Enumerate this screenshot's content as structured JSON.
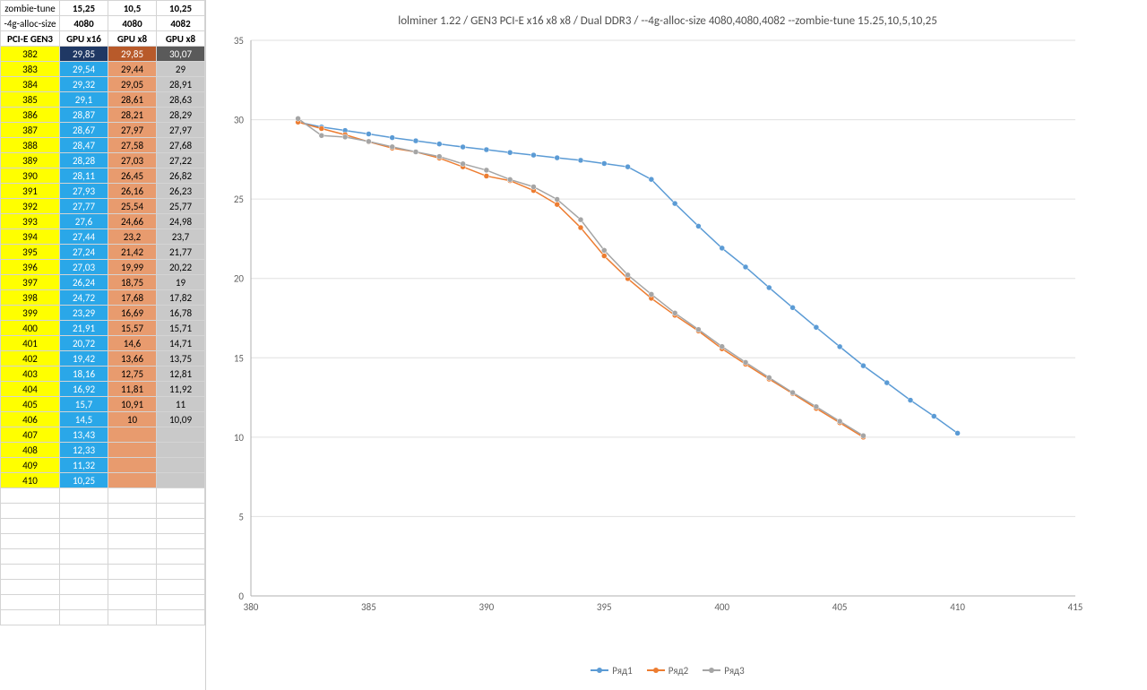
{
  "headers": {
    "row1_label": "zombie-tune",
    "row1_vals": [
      "15,25",
      "10,5",
      "10,25"
    ],
    "row2_label": "-4g-alloc-size",
    "row2_vals": [
      "4080",
      "4080",
      "4082"
    ],
    "row3_label": "PCI-E GEN3",
    "row3_vals": [
      "GPU x16",
      "GPU x8",
      "GPU x8"
    ]
  },
  "epoch_col_color": "#ffff00",
  "series_colors": {
    "s1": "#2aa7e8",
    "s2": "#e89b6e",
    "s3": "#c9c9c9",
    "s1_sel": "#1f3864",
    "s2_sel": "#b85a2a",
    "s3_sel": "#5a5a5a"
  },
  "rows": [
    {
      "e": 382,
      "s1": "29,85",
      "s2": "29,85",
      "s3": "30,07",
      "sel": true
    },
    {
      "e": 383,
      "s1": "29,54",
      "s2": "29,44",
      "s3": "29"
    },
    {
      "e": 384,
      "s1": "29,32",
      "s2": "29,05",
      "s3": "28,91"
    },
    {
      "e": 385,
      "s1": "29,1",
      "s2": "28,61",
      "s3": "28,63"
    },
    {
      "e": 386,
      "s1": "28,87",
      "s2": "28,21",
      "s3": "28,29"
    },
    {
      "e": 387,
      "s1": "28,67",
      "s2": "27,97",
      "s3": "27,97"
    },
    {
      "e": 388,
      "s1": "28,47",
      "s2": "27,58",
      "s3": "27,68"
    },
    {
      "e": 389,
      "s1": "28,28",
      "s2": "27,03",
      "s3": "27,22"
    },
    {
      "e": 390,
      "s1": "28,11",
      "s2": "26,45",
      "s3": "26,82"
    },
    {
      "e": 391,
      "s1": "27,93",
      "s2": "26,16",
      "s3": "26,23"
    },
    {
      "e": 392,
      "s1": "27,77",
      "s2": "25,54",
      "s3": "25,77"
    },
    {
      "e": 393,
      "s1": "27,6",
      "s2": "24,66",
      "s3": "24,98"
    },
    {
      "e": 394,
      "s1": "27,44",
      "s2": "23,2",
      "s3": "23,7"
    },
    {
      "e": 395,
      "s1": "27,24",
      "s2": "21,42",
      "s3": "21,77"
    },
    {
      "e": 396,
      "s1": "27,03",
      "s2": "19,99",
      "s3": "20,22"
    },
    {
      "e": 397,
      "s1": "26,24",
      "s2": "18,75",
      "s3": "19"
    },
    {
      "e": 398,
      "s1": "24,72",
      "s2": "17,68",
      "s3": "17,82"
    },
    {
      "e": 399,
      "s1": "23,29",
      "s2": "16,69",
      "s3": "16,78"
    },
    {
      "e": 400,
      "s1": "21,91",
      "s2": "15,57",
      "s3": "15,71"
    },
    {
      "e": 401,
      "s1": "20,72",
      "s2": "14,6",
      "s3": "14,71"
    },
    {
      "e": 402,
      "s1": "19,42",
      "s2": "13,66",
      "s3": "13,75"
    },
    {
      "e": 403,
      "s1": "18,16",
      "s2": "12,75",
      "s3": "12,81"
    },
    {
      "e": 404,
      "s1": "16,92",
      "s2": "11,81",
      "s3": "11,92"
    },
    {
      "e": 405,
      "s1": "15,7",
      "s2": "10,91",
      "s3": "11"
    },
    {
      "e": 406,
      "s1": "14,5",
      "s2": "10",
      "s3": "10,09"
    },
    {
      "e": 407,
      "s1": "13,43",
      "s2": "",
      "s3": ""
    },
    {
      "e": 408,
      "s1": "12,33",
      "s2": "",
      "s3": ""
    },
    {
      "e": 409,
      "s1": "11,32",
      "s2": "",
      "s3": ""
    },
    {
      "e": 410,
      "s1": "10,25",
      "s2": "",
      "s3": ""
    }
  ],
  "chart": {
    "type": "line",
    "title": "lolminer 1.22  / GEN3 PCI-E x16 x8 x8  / Dual DDR3 /  --4g-alloc-size 4080,4080,4082 --zombie-tune 15.25,10,5,10,25",
    "title_fontsize": 13,
    "title_color": "#505050",
    "background_color": "#ffffff",
    "grid_color": "#e0e0e0",
    "axis_color": "#b0b0b0",
    "tick_fontsize": 11,
    "tick_color": "#606060",
    "xlim": [
      380,
      415
    ],
    "ylim": [
      0,
      35
    ],
    "xtick_step": 5,
    "ytick_step": 5,
    "x_values": [
      382,
      383,
      384,
      385,
      386,
      387,
      388,
      389,
      390,
      391,
      392,
      393,
      394,
      395,
      396,
      397,
      398,
      399,
      400,
      401,
      402,
      403,
      404,
      405,
      406,
      407,
      408,
      409,
      410
    ],
    "marker_radius": 3,
    "line_width": 1.5,
    "series": [
      {
        "name": "Ряд1",
        "color": "#5b9bd5",
        "values": [
          29.85,
          29.54,
          29.32,
          29.1,
          28.87,
          28.67,
          28.47,
          28.28,
          28.11,
          27.93,
          27.77,
          27.6,
          27.44,
          27.24,
          27.03,
          26.24,
          24.72,
          23.29,
          21.91,
          20.72,
          19.42,
          18.16,
          16.92,
          15.7,
          14.5,
          13.43,
          12.33,
          11.32,
          10.25
        ]
      },
      {
        "name": "Ряд2",
        "color": "#ed7d31",
        "values": [
          29.85,
          29.44,
          29.05,
          28.61,
          28.21,
          27.97,
          27.58,
          27.03,
          26.45,
          26.16,
          25.54,
          24.66,
          23.2,
          21.42,
          19.99,
          18.75,
          17.68,
          16.69,
          15.57,
          14.6,
          13.66,
          12.75,
          11.81,
          10.91,
          10
        ]
      },
      {
        "name": "Ряд3",
        "color": "#a5a5a5",
        "values": [
          30.07,
          29,
          28.91,
          28.63,
          28.29,
          27.97,
          27.68,
          27.22,
          26.82,
          26.23,
          25.77,
          24.98,
          23.7,
          21.77,
          20.22,
          19,
          17.82,
          16.78,
          15.71,
          14.71,
          13.75,
          12.81,
          11.92,
          11,
          10.09
        ]
      }
    ],
    "legend_position": "bottom",
    "legend_labels": [
      "Ряд1",
      "Ряд2",
      "Ряд3"
    ]
  }
}
